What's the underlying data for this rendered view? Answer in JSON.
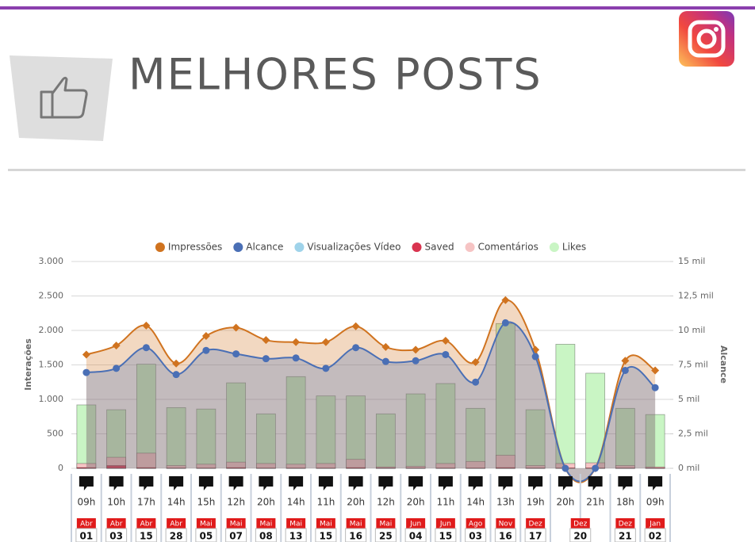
{
  "header": {
    "title": "MELHORES POSTS"
  },
  "chart_data": {
    "type": "combo",
    "ylabel": "Interações",
    "y2label": "Alcance",
    "ylim": [
      0,
      3000
    ],
    "yticks": [
      0,
      500,
      {
        "value": 1000,
        "label": "1.000"
      },
      {
        "value": 1500,
        "label": "1.500"
      },
      {
        "value": 2000,
        "label": "2.000"
      },
      {
        "value": 2500,
        "label": "2.500"
      },
      {
        "value": 3000,
        "label": "3.000"
      }
    ],
    "y2lim": [
      0,
      15
    ],
    "y2ticks": [
      {
        "value": 0,
        "label": "0 mil"
      },
      {
        "value": 2.5,
        "label": "2,5 mil"
      },
      {
        "value": 5,
        "label": "5 mil"
      },
      {
        "value": 7.5,
        "label": "7,5 mil"
      },
      {
        "value": 10,
        "label": "10 mil"
      },
      {
        "value": 12.5,
        "label": "12,5 mil"
      },
      {
        "value": 15,
        "label": "15 mil"
      }
    ],
    "grid": true,
    "legend": "top",
    "posts_by_date": [
      {
        "month": "Abr",
        "day": "01",
        "hours": [
          "09h"
        ]
      },
      {
        "month": "Abr",
        "day": "03",
        "hours": [
          "10h"
        ]
      },
      {
        "month": "Abr",
        "day": "15",
        "hours": [
          "17h"
        ]
      },
      {
        "month": "Abr",
        "day": "28",
        "hours": [
          "14h"
        ]
      },
      {
        "month": "Mai",
        "day": "05",
        "hours": [
          "15h"
        ]
      },
      {
        "month": "Mai",
        "day": "07",
        "hours": [
          "12h"
        ]
      },
      {
        "month": "Mai",
        "day": "08",
        "hours": [
          "20h"
        ]
      },
      {
        "month": "Mai",
        "day": "13",
        "hours": [
          "14h"
        ]
      },
      {
        "month": "Mai",
        "day": "15",
        "hours": [
          "11h"
        ]
      },
      {
        "month": "Mai",
        "day": "16",
        "hours": [
          "20h"
        ]
      },
      {
        "month": "Mai",
        "day": "25",
        "hours": [
          "12h"
        ]
      },
      {
        "month": "Jun",
        "day": "04",
        "hours": [
          "20h"
        ]
      },
      {
        "month": "Jun",
        "day": "15",
        "hours": [
          "11h"
        ]
      },
      {
        "month": "Ago",
        "day": "03",
        "hours": [
          "14h"
        ]
      },
      {
        "month": "Nov",
        "day": "16",
        "hours": [
          "13h"
        ]
      },
      {
        "month": "Dez",
        "day": "17",
        "hours": [
          "19h"
        ]
      },
      {
        "month": "Dez",
        "day": "20",
        "hours": [
          "20h",
          "21h"
        ]
      },
      {
        "month": "Dez",
        "day": "21",
        "hours": [
          "18h"
        ]
      },
      {
        "month": "Jan",
        "day": "02",
        "hours": [
          "09h"
        ]
      }
    ],
    "series": [
      {
        "name": "Impressões",
        "color": "#d0731f",
        "axis": "y2",
        "kind": "area",
        "marker": "diamond",
        "values": [
          8.25,
          8.9,
          10.35,
          7.6,
          9.6,
          10.2,
          9.3,
          9.15,
          9.15,
          10.3,
          8.8,
          8.6,
          9.25,
          7.7,
          12.2,
          8.6,
          0,
          0,
          7.8,
          7.1
        ]
      },
      {
        "name": "Alcance",
        "color": "#4a6fb5",
        "axis": "y2",
        "kind": "area",
        "marker": "circle",
        "values": [
          6.95,
          7.25,
          8.75,
          6.8,
          8.55,
          8.3,
          7.95,
          8.0,
          7.25,
          8.75,
          7.75,
          7.8,
          8.25,
          6.25,
          10.55,
          8.1,
          0,
          0,
          7.1,
          5.85
        ]
      },
      {
        "name": "Visualizações Vídeo",
        "color": "#9fd3ea",
        "kind": "column",
        "values": [
          0,
          0,
          0,
          0,
          0,
          0,
          0,
          0,
          0,
          0,
          0,
          0,
          0,
          0,
          0,
          0,
          0,
          0,
          0,
          0
        ]
      },
      {
        "name": "Saved",
        "color": "#d9344f",
        "kind": "column",
        "values": [
          10,
          40,
          10,
          5,
          5,
          10,
          5,
          5,
          5,
          10,
          5,
          5,
          5,
          5,
          10,
          5,
          5,
          5,
          5,
          5
        ]
      },
      {
        "name": "Comentários",
        "color": "#f6c4c4",
        "kind": "column",
        "values": [
          70,
          160,
          220,
          40,
          60,
          90,
          70,
          60,
          70,
          130,
          20,
          30,
          70,
          100,
          190,
          40,
          70,
          80,
          40,
          20
        ]
      },
      {
        "name": "Likes",
        "color": "#c9f5c4",
        "kind": "column",
        "values": [
          920,
          850,
          1510,
          880,
          860,
          1240,
          790,
          1330,
          1050,
          1050,
          790,
          1080,
          1230,
          870,
          2100,
          850,
          1800,
          1380,
          870,
          780
        ]
      }
    ]
  }
}
